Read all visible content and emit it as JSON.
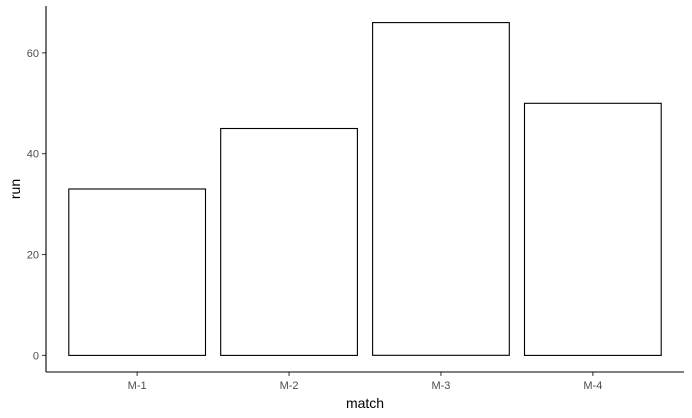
{
  "chart_data": {
    "type": "bar",
    "title": "",
    "xlabel": "match",
    "ylabel": "run",
    "categories": [
      "M-1",
      "M-2",
      "M-3",
      "M-4"
    ],
    "values": [
      33,
      45,
      66,
      50
    ],
    "yticks": [
      0,
      20,
      40,
      60
    ],
    "ylim": [
      -3.3,
      69.3
    ],
    "grid": false,
    "legend": "none",
    "colors": {
      "bar_fill": "#ffffff",
      "bar_stroke": "#000000",
      "axis_line": "#000000",
      "tick_mark": "#333333",
      "tick_label": "#4d4d4d"
    }
  }
}
